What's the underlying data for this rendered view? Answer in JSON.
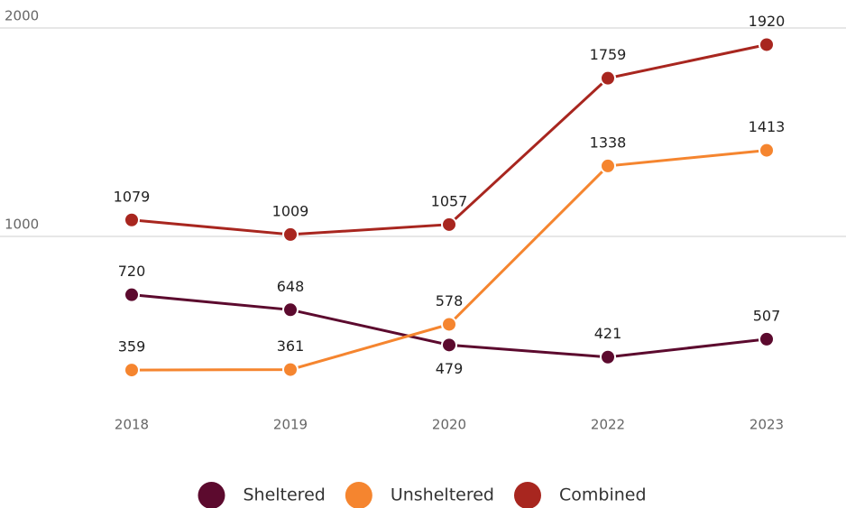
{
  "chart_data": {
    "type": "line",
    "categories": [
      "2018",
      "2019",
      "2020",
      "2022",
      "2023"
    ],
    "series": [
      {
        "name": "Sheltered",
        "color": "#5c0a2e",
        "values": [
          720,
          648,
          479,
          421,
          507
        ]
      },
      {
        "name": "Unsheltered",
        "color": "#f5852f",
        "values": [
          359,
          361,
          578,
          1338,
          1413
        ]
      },
      {
        "name": "Combined",
        "color": "#a8261f",
        "values": [
          1079,
          1009,
          1057,
          1759,
          1920
        ]
      }
    ],
    "ylim": [
      0,
      2000
    ],
    "yticks": [
      1000,
      2000
    ],
    "grid": true,
    "legend": "bottom"
  }
}
